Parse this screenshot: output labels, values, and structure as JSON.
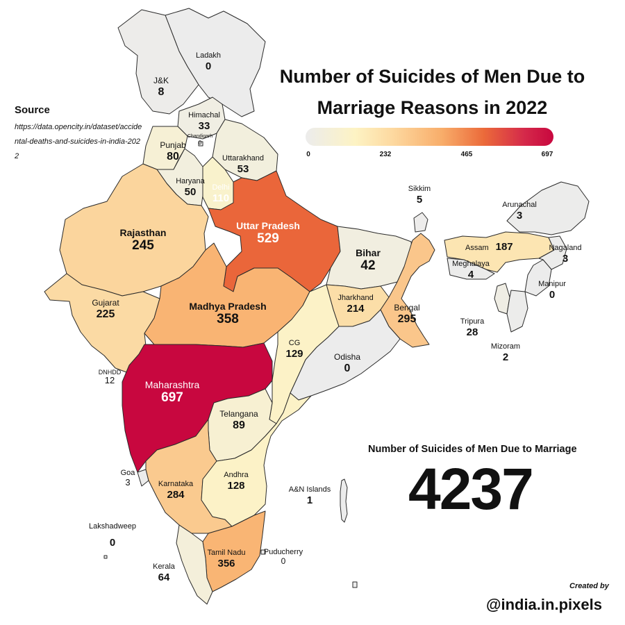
{
  "title": "Number of Suicides of Men Due to Marriage Reasons in 2022",
  "source": {
    "label": "Source",
    "url": "https://data.opencity.in/dataset/accidental-deaths-and-suicides-in-india-2022"
  },
  "legend": {
    "ticks": [
      "0",
      "232",
      "465",
      "697"
    ],
    "min": 0,
    "max": 697,
    "colors": [
      "#ececec",
      "#fdf3c4",
      "#f8ad6a",
      "#eb6a3a",
      "#c8073f"
    ]
  },
  "total": {
    "label": "Number of Suicides of Men Due to Marriage",
    "value": "4237"
  },
  "credit": {
    "label": "Created by",
    "handle": "@india.in.pixels"
  },
  "regions": [
    {
      "name": "Ladakh",
      "value": "0"
    },
    {
      "name": "J&K",
      "value": "8"
    },
    {
      "name": "Himachal",
      "value": "33"
    },
    {
      "name": "Chandigarh",
      "value": "0"
    },
    {
      "name": "Punjab",
      "value": "80"
    },
    {
      "name": "Uttarakhand",
      "value": "53"
    },
    {
      "name": "Haryana",
      "value": "50"
    },
    {
      "name": "Delhi",
      "value": "110"
    },
    {
      "name": "Rajasthan",
      "value": "245"
    },
    {
      "name": "Uttar Pradesh",
      "value": "529"
    },
    {
      "name": "Bihar",
      "value": "42"
    },
    {
      "name": "Sikkim",
      "value": "5"
    },
    {
      "name": "Arunachal",
      "value": "3"
    },
    {
      "name": "Assam",
      "value": "187"
    },
    {
      "name": "Nagaland",
      "value": "3"
    },
    {
      "name": "Meghalaya",
      "value": "4"
    },
    {
      "name": "Manipur",
      "value": "0"
    },
    {
      "name": "Tripura",
      "value": "28"
    },
    {
      "name": "Mizoram",
      "value": "2"
    },
    {
      "name": "Gujarat",
      "value": "225"
    },
    {
      "name": "Madhya Pradesh",
      "value": "358"
    },
    {
      "name": "Jharkhand",
      "value": "214"
    },
    {
      "name": "Bengal",
      "value": "295"
    },
    {
      "name": "CG",
      "value": "129"
    },
    {
      "name": "Odisha",
      "value": "0"
    },
    {
      "name": "DNHDD",
      "value": "12"
    },
    {
      "name": "Maharashtra",
      "value": "697"
    },
    {
      "name": "Telangana",
      "value": "89"
    },
    {
      "name": "Goa",
      "value": "3"
    },
    {
      "name": "Karnataka",
      "value": "284"
    },
    {
      "name": "Andhra",
      "value": "128"
    },
    {
      "name": "A&N Islands",
      "value": "1"
    },
    {
      "name": "Lakshadweep",
      "value": "0"
    },
    {
      "name": "Tamil Nadu",
      "value": "356"
    },
    {
      "name": "Puducherry",
      "value": "0"
    },
    {
      "name": "Kerala",
      "value": "64"
    }
  ]
}
